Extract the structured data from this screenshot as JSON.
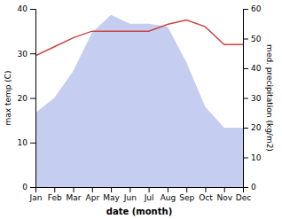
{
  "chart_data": {
    "type": "line",
    "xlabel": "date (month)",
    "ylabel": "max temp (C)",
    "y2label": "med. precipitation (kg/m2)",
    "categories": [
      "Jan",
      "Feb",
      "Mar",
      "Apr",
      "May",
      "Jun",
      "Jul",
      "Aug",
      "Sep",
      "Oct",
      "Nov",
      "Dec"
    ],
    "series": [
      {
        "type": "area",
        "axis": "y2",
        "color": "#c5cdf0",
        "values": [
          25,
          30,
          39,
          52,
          58,
          55,
          55,
          54,
          42,
          27,
          20,
          20
        ]
      },
      {
        "type": "line",
        "color": "#cc4444",
        "values": [
          29.5,
          31.5,
          33.5,
          35.0,
          35.0,
          35.0,
          35.0,
          36.5,
          37.5,
          36.0,
          32.0,
          32.0
        ]
      }
    ],
    "ylim": [
      0,
      40
    ],
    "yticks": [
      0,
      10,
      20,
      30,
      40
    ],
    "y2lim": [
      0,
      60
    ],
    "y2ticks": [
      0,
      10,
      20,
      30,
      40,
      50,
      60
    ]
  }
}
